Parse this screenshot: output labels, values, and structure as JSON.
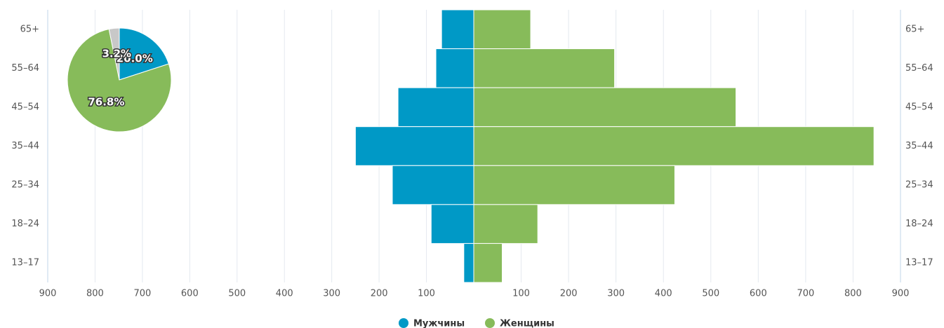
{
  "chart_data": [
    {
      "type": "pyramid",
      "categories": [
        "65+",
        "55–64",
        "45–54",
        "35–44",
        "25–34",
        "18–24",
        "13–17"
      ],
      "series": [
        {
          "name": "Мужчины",
          "color": "#0099c6",
          "values": [
            68,
            80,
            160,
            250,
            172,
            90,
            21
          ]
        },
        {
          "name": "Женщины",
          "color": "#87bb5a",
          "values": [
            120,
            297,
            553,
            844,
            424,
            135,
            60
          ]
        }
      ],
      "xlim_left": [
        900,
        0
      ],
      "xticks_left": [
        900,
        800,
        700,
        600,
        500,
        400,
        300,
        200,
        100
      ],
      "xlim_right": [
        0,
        900
      ],
      "xticks_right": [
        100,
        200,
        300,
        400,
        500,
        600,
        700,
        800,
        900
      ],
      "grid": true
    },
    {
      "type": "pie",
      "values": [
        20,
        76.8,
        3.2
      ],
      "value_labels": [
        "20.0%",
        "76.8%",
        "3.2%"
      ],
      "colors": [
        "#0099c6",
        "#87bb5a",
        "#c8c8c8"
      ]
    }
  ]
}
